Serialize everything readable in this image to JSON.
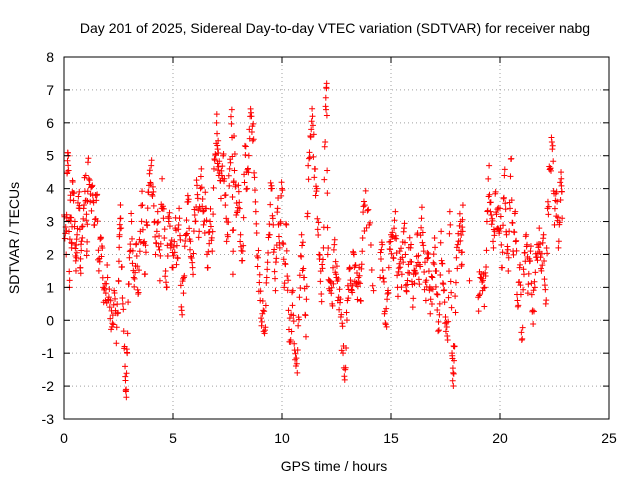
{
  "chart_data": {
    "type": "scatter",
    "title": "Day 201 of 2025, Sidereal Day-to-day VTEC variation (SDTVAR) for receiver nabg",
    "xlabel": "GPS time / hours",
    "ylabel": "SDTVAR / TECUs",
    "xlim": [
      0,
      25
    ],
    "ylim": [
      -3,
      8
    ],
    "xticks": [
      "0",
      "5",
      "10",
      "15",
      "20",
      "25"
    ],
    "yticks": [
      "-3",
      "-2",
      "-1",
      "0",
      "1",
      "2",
      "3",
      "4",
      "5",
      "6",
      "7",
      "8"
    ],
    "grid": true,
    "marker": "+",
    "series": [
      {
        "name": "SDTVAR",
        "color": "#ff0000",
        "points": [
          [
            0.0,
            3.2
          ],
          [
            0.1,
            2.0
          ],
          [
            0.15,
            4.5
          ],
          [
            0.2,
            5.0
          ],
          [
            0.25,
            1.0
          ],
          [
            0.3,
            3.8
          ],
          [
            0.35,
            2.2
          ],
          [
            0.4,
            4.2
          ],
          [
            0.5,
            3.0
          ],
          [
            0.55,
            1.5
          ],
          [
            0.6,
            2.6
          ],
          [
            0.7,
            3.9
          ],
          [
            0.75,
            1.6
          ],
          [
            0.8,
            2.4
          ],
          [
            0.9,
            3.4
          ],
          [
            1.0,
            4.4
          ],
          [
            1.05,
            2.1
          ],
          [
            1.1,
            4.8
          ],
          [
            1.2,
            3.6
          ],
          [
            1.3,
            4.1
          ],
          [
            1.4,
            2.9
          ],
          [
            1.5,
            3.8
          ],
          [
            1.6,
            1.5
          ],
          [
            1.7,
            2.5
          ],
          [
            1.8,
            1.0
          ],
          [
            1.9,
            0.6
          ],
          [
            2.0,
            1.3
          ],
          [
            2.1,
            0.4
          ],
          [
            2.2,
            -0.2
          ],
          [
            2.3,
            0.9
          ],
          [
            2.4,
            -0.7
          ],
          [
            2.5,
            1.2
          ],
          [
            2.55,
            2.6
          ],
          [
            2.6,
            3.1
          ],
          [
            2.7,
            0.5
          ],
          [
            2.8,
            -1.4
          ],
          [
            2.85,
            -2.1
          ],
          [
            2.9,
            -1.0
          ],
          [
            3.0,
            1.9
          ],
          [
            3.1,
            3.0
          ],
          [
            3.2,
            1.3
          ],
          [
            3.3,
            2.3
          ],
          [
            3.4,
            0.8
          ],
          [
            3.5,
            2.7
          ],
          [
            3.6,
            3.5
          ],
          [
            3.7,
            1.4
          ],
          [
            3.8,
            2.9
          ],
          [
            3.9,
            4.1
          ],
          [
            4.0,
            4.7
          ],
          [
            4.1,
            3.9
          ],
          [
            4.2,
            2.0
          ],
          [
            4.3,
            3.3
          ],
          [
            4.4,
            1.2
          ],
          [
            4.5,
            4.3
          ],
          [
            4.6,
            2.5
          ],
          [
            4.7,
            1.0
          ],
          [
            4.8,
            3.0
          ],
          [
            4.9,
            2.2
          ],
          [
            5.0,
            1.6
          ],
          [
            5.1,
            2.8
          ],
          [
            5.2,
            1.9
          ],
          [
            5.3,
            3.1
          ],
          [
            5.4,
            0.3
          ],
          [
            5.5,
            1.3
          ],
          [
            5.6,
            2.6
          ],
          [
            5.7,
            3.6
          ],
          [
            5.8,
            2.4
          ],
          [
            5.9,
            1.6
          ],
          [
            6.0,
            3.2
          ],
          [
            6.1,
            4.1
          ],
          [
            6.2,
            2.7
          ],
          [
            6.3,
            4.6
          ],
          [
            6.4,
            2.9
          ],
          [
            6.5,
            3.4
          ],
          [
            6.6,
            1.6
          ],
          [
            6.7,
            3.0
          ],
          [
            6.8,
            2.1
          ],
          [
            6.9,
            4.9
          ],
          [
            7.0,
            6.0
          ],
          [
            7.05,
            5.2
          ],
          [
            7.1,
            4.4
          ],
          [
            7.2,
            3.7
          ],
          [
            7.3,
            5.0
          ],
          [
            7.4,
            3.5
          ],
          [
            7.5,
            2.6
          ],
          [
            7.6,
            4.6
          ],
          [
            7.7,
            6.4
          ],
          [
            7.75,
            1.4
          ],
          [
            7.8,
            5.6
          ],
          [
            7.9,
            3.2
          ],
          [
            8.0,
            4.1
          ],
          [
            8.1,
            2.6
          ],
          [
            8.2,
            2.1
          ],
          [
            8.3,
            5.3
          ],
          [
            8.4,
            4.0
          ],
          [
            8.5,
            5.8
          ],
          [
            8.6,
            6.2
          ],
          [
            8.7,
            5.5
          ],
          [
            8.8,
            3.3
          ],
          [
            8.9,
            1.9
          ],
          [
            9.0,
            0.6
          ],
          [
            9.1,
            0.2
          ],
          [
            9.2,
            -0.4
          ],
          [
            9.3,
            1.3
          ],
          [
            9.4,
            2.6
          ],
          [
            9.5,
            4.0
          ],
          [
            9.6,
            2.9
          ],
          [
            9.7,
            0.9
          ],
          [
            9.8,
            3.4
          ],
          [
            9.9,
            2.2
          ],
          [
            10.0,
            4.0
          ],
          [
            10.1,
            1.0
          ],
          [
            10.2,
            2.9
          ],
          [
            10.3,
            0.3
          ],
          [
            10.4,
            -0.6
          ],
          [
            10.5,
            0.9
          ],
          [
            10.6,
            -1.2
          ],
          [
            10.7,
            -1.6
          ],
          [
            10.8,
            0.7
          ],
          [
            10.9,
            2.6
          ],
          [
            11.0,
            1.3
          ],
          [
            11.1,
            -0.5
          ],
          [
            11.2,
            4.7
          ],
          [
            11.3,
            5.6
          ],
          [
            11.4,
            6.2
          ],
          [
            11.5,
            4.6
          ],
          [
            11.6,
            4.0
          ],
          [
            11.7,
            2.0
          ],
          [
            11.8,
            0.8
          ],
          [
            11.9,
            2.2
          ],
          [
            12.0,
            6.5
          ],
          [
            12.05,
            7.2
          ],
          [
            12.1,
            2.0
          ],
          [
            12.2,
            0.9
          ],
          [
            12.3,
            0.5
          ],
          [
            12.4,
            2.3
          ],
          [
            12.5,
            1.3
          ],
          [
            12.6,
            0.7
          ],
          [
            12.7,
            0.1
          ],
          [
            12.8,
            -1.0
          ],
          [
            12.9,
            -1.5
          ],
          [
            13.0,
            0.6
          ],
          [
            13.1,
            1.6
          ],
          [
            13.2,
            0.9
          ],
          [
            13.3,
            2.0
          ],
          [
            13.4,
            1.1
          ],
          [
            13.5,
            1.3
          ],
          [
            13.6,
            0.6
          ],
          [
            13.7,
            2.5
          ],
          [
            13.8,
            3.5
          ],
          [
            14.0,
            2.9
          ],
          [
            14.2,
            0.9
          ],
          [
            14.5,
            1.3
          ],
          [
            14.6,
            2.3
          ],
          [
            14.7,
            0.2
          ],
          [
            14.8,
            -0.2
          ],
          [
            14.9,
            1.6
          ],
          [
            15.0,
            2.6
          ],
          [
            15.1,
            1.9
          ],
          [
            15.2,
            3.3
          ],
          [
            15.3,
            1.0
          ],
          [
            15.4,
            2.1
          ],
          [
            15.5,
            1.4
          ],
          [
            15.6,
            2.8
          ],
          [
            15.7,
            0.9
          ],
          [
            15.8,
            1.7
          ],
          [
            15.9,
            2.2
          ],
          [
            16.0,
            0.4
          ],
          [
            16.1,
            1.5
          ],
          [
            16.2,
            2.6
          ],
          [
            16.3,
            1.1
          ],
          [
            16.4,
            3.1
          ],
          [
            16.5,
            2.1
          ],
          [
            16.6,
            0.6
          ],
          [
            16.7,
            1.9
          ],
          [
            16.8,
            0.2
          ],
          [
            16.9,
            1.3
          ],
          [
            17.0,
            2.5
          ],
          [
            17.1,
            0.8
          ],
          [
            17.2,
            -0.3
          ],
          [
            17.3,
            2.7
          ],
          [
            17.4,
            1.1
          ],
          [
            17.5,
            0.1
          ],
          [
            17.6,
            -0.6
          ],
          [
            17.7,
            3.3
          ],
          [
            17.8,
            -1.0
          ],
          [
            17.85,
            -1.6
          ],
          [
            17.9,
            -0.8
          ],
          [
            18.0,
            1.9
          ],
          [
            18.1,
            2.4
          ],
          [
            18.2,
            3.0
          ],
          [
            18.25,
            1.7
          ],
          [
            18.3,
            3.5
          ],
          [
            18.6,
            1.2
          ],
          [
            19.0,
            0.7
          ],
          [
            19.1,
            1.3
          ],
          [
            19.2,
            0.9
          ],
          [
            19.3,
            1.0
          ],
          [
            19.4,
            3.0
          ],
          [
            19.5,
            4.7
          ],
          [
            19.6,
            3.2
          ],
          [
            19.7,
            2.2
          ],
          [
            19.8,
            3.9
          ],
          [
            19.9,
            2.8
          ],
          [
            20.0,
            3.4
          ],
          [
            20.1,
            1.6
          ],
          [
            20.2,
            4.4
          ],
          [
            20.3,
            2.6
          ],
          [
            20.4,
            1.9
          ],
          [
            20.5,
            4.9
          ],
          [
            20.6,
            2.1
          ],
          [
            20.7,
            3.3
          ],
          [
            20.8,
            0.6
          ],
          [
            20.9,
            1.6
          ],
          [
            21.0,
            -0.6
          ],
          [
            21.1,
            1.4
          ],
          [
            21.2,
            2.6
          ],
          [
            21.3,
            1.1
          ],
          [
            21.4,
            2.1
          ],
          [
            21.5,
            0.3
          ],
          [
            21.6,
            1.0
          ],
          [
            21.7,
            2.3
          ],
          [
            21.8,
            2.8
          ],
          [
            21.9,
            1.5
          ],
          [
            22.0,
            2.6
          ],
          [
            22.1,
            0.5
          ],
          [
            22.2,
            3.6
          ],
          [
            22.3,
            4.6
          ],
          [
            22.4,
            5.2
          ],
          [
            22.5,
            2.9
          ],
          [
            22.6,
            3.9
          ],
          [
            22.7,
            2.4
          ],
          [
            22.8,
            4.5
          ],
          [
            22.85,
            3.1
          ]
        ]
      }
    ]
  }
}
